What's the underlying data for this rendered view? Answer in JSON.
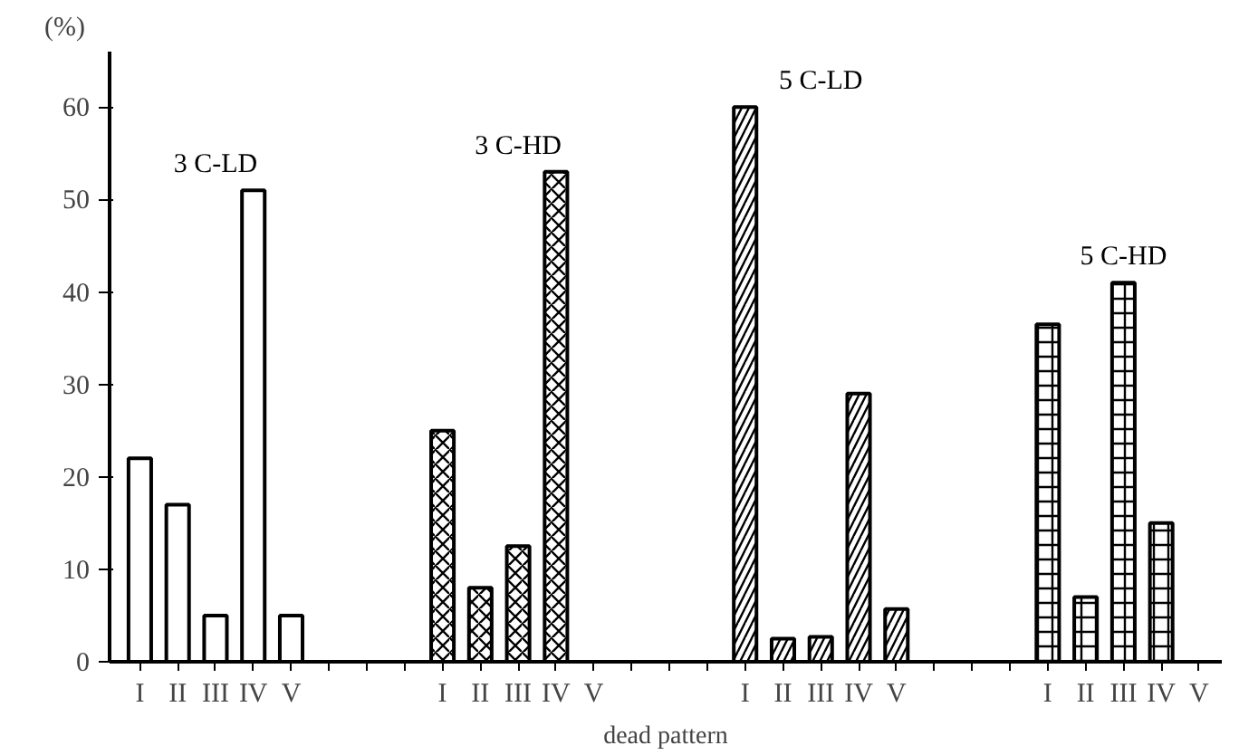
{
  "chart_data": {
    "type": "bar",
    "xlabel": "dead pattern",
    "ylabel": "(%)",
    "categories": [
      "I",
      "II",
      "III",
      "IV",
      "V",
      null,
      null,
      null,
      "I",
      "II",
      "III",
      "IV",
      "V",
      null,
      null,
      null,
      "I",
      "II",
      "III",
      "IV",
      "V",
      null,
      null,
      null,
      "I",
      "II",
      "III",
      "IV",
      "V"
    ],
    "series": [
      {
        "name": "3 C-LD",
        "color": "#000000",
        "values": [
          22,
          17,
          5,
          51,
          5,
          null,
          null,
          null,
          null,
          null,
          null,
          null,
          null,
          null,
          null,
          null,
          null,
          null,
          null,
          null,
          null,
          null,
          null,
          null,
          null,
          null,
          null,
          null,
          null
        ]
      },
      {
        "name": "3 C-HD",
        "color": "#000000",
        "values": [
          null,
          null,
          null,
          null,
          null,
          null,
          null,
          null,
          25,
          8,
          12.5,
          53,
          0,
          null,
          null,
          null,
          null,
          null,
          null,
          null,
          null,
          null,
          null,
          null,
          null,
          null,
          null,
          null,
          null
        ]
      },
      {
        "name": "5 C-LD",
        "color": "#000000",
        "values": [
          null,
          null,
          null,
          null,
          null,
          null,
          null,
          null,
          null,
          null,
          null,
          null,
          null,
          null,
          null,
          null,
          60,
          2.5,
          2.7,
          29,
          5.7,
          null,
          null,
          null,
          null,
          null,
          null,
          null,
          null
        ]
      },
      {
        "name": "5 C-HD",
        "color": "#000000",
        "values": [
          null,
          null,
          null,
          null,
          null,
          null,
          null,
          null,
          null,
          null,
          null,
          null,
          null,
          null,
          null,
          null,
          null,
          null,
          null,
          null,
          null,
          null,
          null,
          null,
          36.5,
          7,
          41,
          15,
          0
        ]
      }
    ],
    "ylim": [
      0,
      66
    ],
    "yticks": [
      0,
      10,
      20,
      30,
      40,
      50,
      60
    ],
    "grid": false
  }
}
